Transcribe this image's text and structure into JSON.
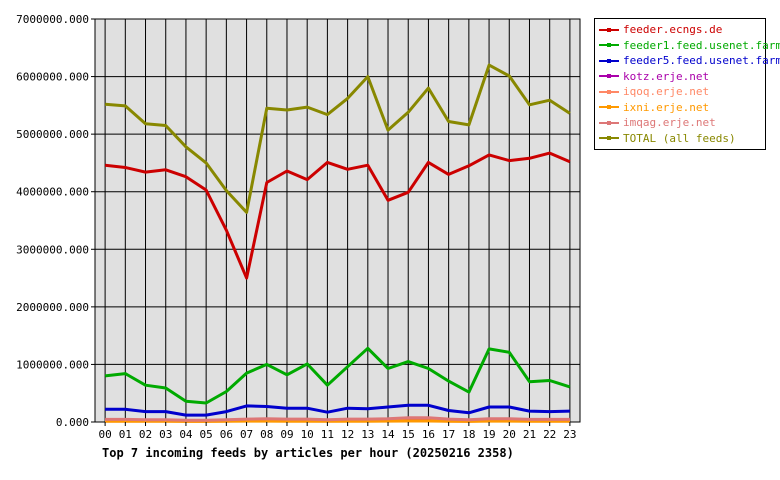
{
  "chart_data": {
    "type": "line",
    "title": "Top 7 incoming feeds by articles per hour (20250216 2358)",
    "xlabel": "",
    "ylabel": "",
    "categories": [
      "00",
      "01",
      "02",
      "03",
      "04",
      "05",
      "06",
      "07",
      "08",
      "09",
      "10",
      "11",
      "12",
      "13",
      "14",
      "15",
      "16",
      "17",
      "18",
      "19",
      "20",
      "21",
      "22",
      "23"
    ],
    "ylim": [
      0,
      7000000
    ],
    "yticks": [
      "0.000",
      "1000000.000",
      "2000000.000",
      "3000000.000",
      "4000000.000",
      "5000000.000",
      "6000000.000",
      "7000000.000"
    ],
    "grid": true,
    "legend_position": "top-right",
    "series": [
      {
        "name": "feeder.ecngs.de",
        "color": "#cc0000",
        "values": [
          4460000,
          4420000,
          4340000,
          4380000,
          4260000,
          4030000,
          3330000,
          2500000,
          4160000,
          4360000,
          4210000,
          4510000,
          4390000,
          4460000,
          3850000,
          3990000,
          4510000,
          4300000,
          4450000,
          4640000,
          4540000,
          4580000,
          4670000,
          4520000
        ]
      },
      {
        "name": "feeder1.feed.usenet.farm",
        "color": "#00aa00",
        "values": [
          800000,
          840000,
          640000,
          590000,
          360000,
          330000,
          530000,
          850000,
          1000000,
          820000,
          1010000,
          640000,
          960000,
          1280000,
          930000,
          1050000,
          930000,
          710000,
          520000,
          1270000,
          1210000,
          700000,
          720000,
          610000
        ]
      },
      {
        "name": "feeder5.feed.usenet.farm",
        "color": "#0000cc",
        "values": [
          220000,
          220000,
          180000,
          180000,
          120000,
          120000,
          180000,
          280000,
          270000,
          240000,
          240000,
          170000,
          240000,
          230000,
          260000,
          290000,
          290000,
          200000,
          160000,
          260000,
          260000,
          190000,
          180000,
          190000
        ]
      },
      {
        "name": "kotz.erje.net",
        "color": "#aa00aa",
        "values": [
          20000,
          20000,
          20000,
          20000,
          15000,
          15000,
          20000,
          25000,
          25000,
          22000,
          22000,
          18000,
          22000,
          22000,
          24000,
          26000,
          26000,
          20000,
          18000,
          24000,
          24000,
          20000,
          20000,
          20000
        ]
      },
      {
        "name": "iqoq.erje.net",
        "color": "#ff8866",
        "values": [
          15000,
          15000,
          15000,
          15000,
          12000,
          12000,
          15000,
          20000,
          20000,
          18000,
          18000,
          15000,
          18000,
          18000,
          20000,
          22000,
          22000,
          16000,
          14000,
          20000,
          20000,
          16000,
          16000,
          16000
        ]
      },
      {
        "name": "ixni.erje.net",
        "color": "#ff9900",
        "values": [
          12000,
          12000,
          12000,
          12000,
          10000,
          10000,
          12000,
          16000,
          16000,
          14000,
          14000,
          12000,
          14000,
          14000,
          16000,
          18000,
          18000,
          13000,
          11000,
          16000,
          16000,
          13000,
          13000,
          13000
        ]
      },
      {
        "name": "imqag.erje.net",
        "color": "#dd7777",
        "values": [
          45000,
          45000,
          40000,
          40000,
          30000,
          30000,
          40000,
          50000,
          55000,
          50000,
          50000,
          40000,
          50000,
          50000,
          55000,
          75000,
          75000,
          50000,
          40000,
          55000,
          55000,
          45000,
          45000,
          45000
        ]
      },
      {
        "name": "TOTAL (all feeds)",
        "color": "#888800",
        "values": [
          5520000,
          5490000,
          5180000,
          5150000,
          4780000,
          4500000,
          4020000,
          3640000,
          5450000,
          5420000,
          5470000,
          5340000,
          5620000,
          6000000,
          5070000,
          5380000,
          5800000,
          5220000,
          5160000,
          6200000,
          6010000,
          5510000,
          5590000,
          5360000
        ]
      }
    ]
  }
}
